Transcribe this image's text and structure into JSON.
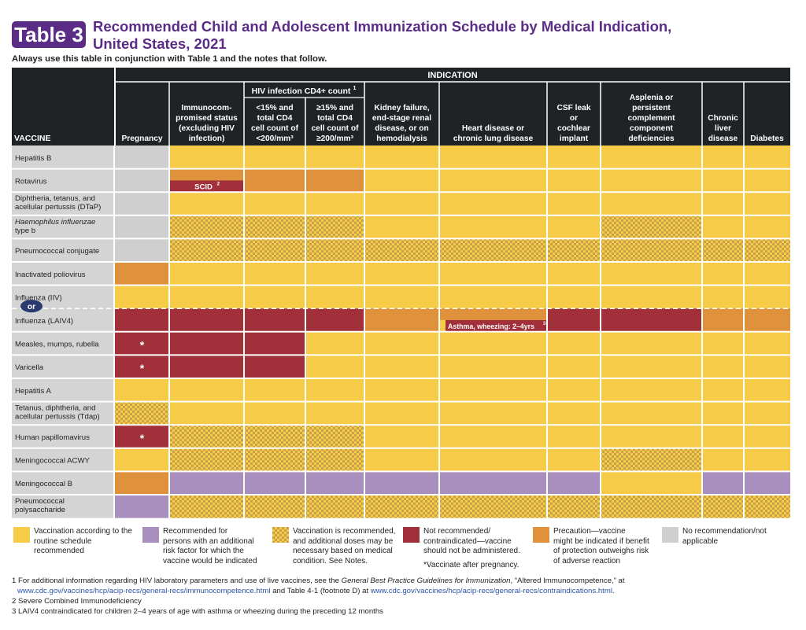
{
  "header": {
    "badge": "Table 3",
    "title_line1": "Recommended Child and Adolescent Immunization Schedule by Medical Indication,",
    "title_line2": "United States, 2021",
    "subtitle": "Always use this table in conjunction with Table 1 and the notes that follow."
  },
  "table": {
    "indication_label": "INDICATION",
    "vaccine_label": "VACCINE",
    "hiv_group_label": "HIV infection CD4+ count",
    "hiv_group_sup": "1",
    "columns": [
      {
        "lines": [
          "Pregnancy"
        ]
      },
      {
        "lines": [
          "Immunocom-",
          "promised status",
          "(excluding HIV",
          "infection)"
        ]
      },
      {
        "lines": [
          "<15% and",
          "total CD4",
          "cell count of",
          "<200/mm³"
        ]
      },
      {
        "lines": [
          "≥15% and",
          "total CD4",
          "cell count of",
          "≥200/mm³"
        ]
      },
      {
        "lines": [
          "Kidney failure,",
          "end-stage renal",
          "disease, or on",
          "hemodialysis"
        ]
      },
      {
        "lines": [
          "Heart disease or",
          "chronic lung disease"
        ]
      },
      {
        "lines": [
          "CSF leak",
          "or",
          "cochlear",
          "implant"
        ]
      },
      {
        "lines": [
          "Asplenia or",
          "persistent",
          "complement",
          "component",
          "deficiencies"
        ]
      },
      {
        "lines": [
          "Chronic",
          "liver",
          "disease"
        ]
      },
      {
        "lines": [
          "Diabetes"
        ]
      }
    ],
    "rows": [
      {
        "lines": [
          "Hepatitis B"
        ]
      },
      {
        "lines": [
          "Rotavirus"
        ]
      },
      {
        "lines": [
          "Diphtheria, tetanus, and",
          "acellular pertussis (DTaP)"
        ]
      },
      {
        "lines": [
          "Haemophilus influenzae",
          "type b"
        ],
        "italic_first": true
      },
      {
        "lines": [
          "Pneumococcal conjugate"
        ]
      },
      {
        "lines": [
          "Inactivated poliovirus"
        ]
      },
      {
        "lines": [
          "Influenza (IIV)"
        ]
      },
      {
        "lines": [
          "Influenza (LAIV4)"
        ]
      },
      {
        "lines": [
          "Measles, mumps, rubella"
        ]
      },
      {
        "lines": [
          "Varicella"
        ]
      },
      {
        "lines": [
          "Hepatitis A"
        ]
      },
      {
        "lines": [
          "Tetanus, diphtheria, and",
          "acellular pertussis (Tdap)"
        ]
      },
      {
        "lines": [
          "Human papillomavirus"
        ]
      },
      {
        "lines": [
          "Meningococcal ACWY"
        ]
      },
      {
        "lines": [
          "Meningococcal B"
        ]
      },
      {
        "lines": [
          "Pneumococcal",
          "polysaccharide"
        ]
      }
    ],
    "or_label": "or",
    "scid_label": "SCID",
    "scid_sup": "2",
    "asthma_label": "Asthma, wheezing: 2–4yrs",
    "asthma_sup": "3",
    "star": "*",
    "cells": [
      [
        "N",
        "Y",
        "Y",
        "Y",
        "Y",
        "Y",
        "Y",
        "Y",
        "Y",
        "Y"
      ],
      [
        "N",
        "OS",
        "O",
        "O",
        "Y",
        "Y",
        "Y",
        "Y",
        "Y",
        "Y"
      ],
      [
        "N",
        "Y",
        "Y",
        "Y",
        "Y",
        "Y",
        "Y",
        "Y",
        "Y",
        "Y"
      ],
      [
        "N",
        "D",
        "D",
        "D",
        "Y",
        "Y",
        "Y",
        "D",
        "Y",
        "Y"
      ],
      [
        "N",
        "D",
        "D",
        "D",
        "D",
        "D",
        "D",
        "D",
        "D",
        "D"
      ],
      [
        "O",
        "Y",
        "Y",
        "Y",
        "Y",
        "Y",
        "Y",
        "Y",
        "Y",
        "Y"
      ],
      [
        "Y",
        "Y",
        "Y",
        "Y",
        "Y",
        "Y",
        "Y",
        "Y",
        "Y",
        "Y"
      ],
      [
        "R",
        "R",
        "R",
        "R",
        "O",
        "A",
        "R",
        "R",
        "O",
        "O"
      ],
      [
        "RS",
        "R",
        "R",
        "Y",
        "Y",
        "Y",
        "Y",
        "Y",
        "Y",
        "Y"
      ],
      [
        "RS",
        "R",
        "R",
        "Y",
        "Y",
        "Y",
        "Y",
        "Y",
        "Y",
        "Y"
      ],
      [
        "Y",
        "Y",
        "Y",
        "Y",
        "Y",
        "Y",
        "Y",
        "Y",
        "Y",
        "Y"
      ],
      [
        "D",
        "Y",
        "Y",
        "Y",
        "Y",
        "Y",
        "Y",
        "Y",
        "Y",
        "Y"
      ],
      [
        "RS",
        "D",
        "D",
        "D",
        "Y",
        "Y",
        "Y",
        "Y",
        "Y",
        "Y"
      ],
      [
        "Y",
        "D",
        "D",
        "D",
        "Y",
        "Y",
        "Y",
        "D",
        "Y",
        "Y"
      ],
      [
        "O",
        "P",
        "P",
        "P",
        "P",
        "P",
        "P",
        "Y",
        "P",
        "P"
      ],
      [
        "P",
        "D",
        "D",
        "D",
        "D",
        "D",
        "D",
        "D",
        "D",
        "D"
      ]
    ]
  },
  "legend": [
    {
      "key": "Y",
      "lines": [
        "Vaccination according to the",
        "routine schedule",
        "recommended"
      ]
    },
    {
      "key": "P",
      "lines": [
        "Recommended for",
        "persons with an additional",
        "risk factor for which the",
        "vaccine would be indicated"
      ]
    },
    {
      "key": "D",
      "lines": [
        "Vaccination is recommended,",
        "and additional doses may be",
        "necessary based on medical",
        "condition. See Notes."
      ]
    },
    {
      "key": "R",
      "lines": [
        "Not recommended/",
        "contraindicated—vaccine",
        "should not be administered."
      ],
      "note": "*Vaccinate after pregnancy."
    },
    {
      "key": "O",
      "lines": [
        "Precaution—vaccine",
        "might be indicated if benefit",
        "of protection outweighs risk",
        "of adverse reaction"
      ]
    },
    {
      "key": "N",
      "lines": [
        "No recommendation/not",
        "applicable"
      ]
    }
  ],
  "colors": {
    "yellow": "#f5cb48",
    "purple": "#a88fbd",
    "red": "#a2303a",
    "orange": "#e0913c",
    "gray": "#cfcfcf",
    "dark": "#1f2326",
    "dot": "#c8a24a",
    "brand": "#5b2c86",
    "link": "#2a55a8"
  },
  "footnotes": {
    "fn1_pre": "1 For additional information regarding HIV laboratory parameters and use of live vaccines, see the ",
    "fn1_italic": "General Best Practice Guidelines for Immunization",
    "fn1_post": ", “Altered Immunocompetence,” at",
    "fn1_url1": "www.cdc.gov/vaccines/hcp/acip-recs/general-recs/immunocompetence.html",
    "fn1_mid": " and Table 4-1 (footnote D) at ",
    "fn1_url2": "www.cdc.gov/vaccines/hcp/acip-recs/general-recs/contraindications.html",
    "fn1_end": ".",
    "fn2": "2 Severe Combined Immunodeficiency",
    "fn3": "3 LAIV4 contraindicated for children 2–4 years of age with asthma or wheezing during the preceding 12 months"
  }
}
